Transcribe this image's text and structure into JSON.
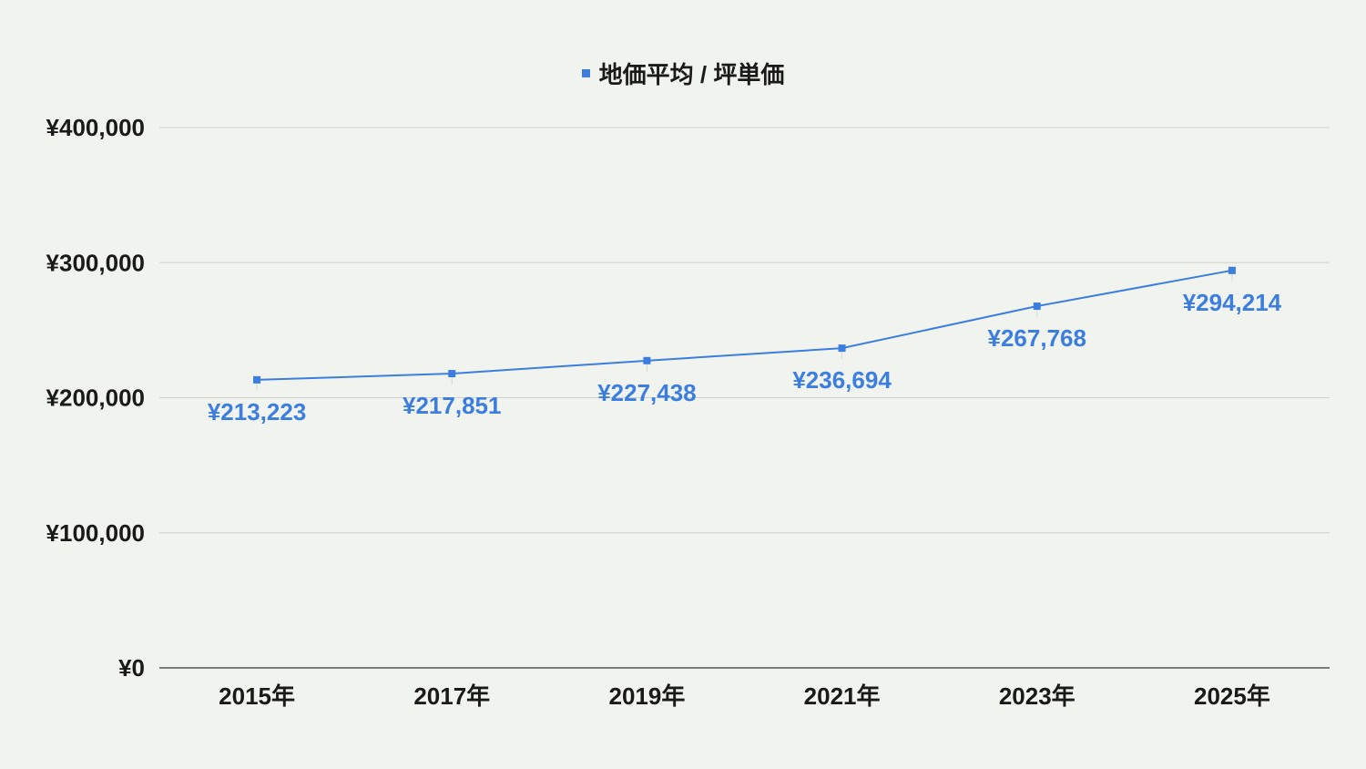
{
  "chart_data": {
    "type": "line",
    "title": "",
    "categories": [
      "2015年",
      "2017年",
      "2019年",
      "2021年",
      "2023年",
      "2025年"
    ],
    "series": [
      {
        "name": "地価平均 / 坪単価",
        "color": "#3c7ee0",
        "values": [
          213223,
          217851,
          227438,
          236694,
          267768,
          294214
        ],
        "data_labels": [
          "¥213,223",
          "¥217,851",
          "¥227,438",
          "¥236,694",
          "¥267,768",
          "¥294,214"
        ]
      }
    ],
    "xlabel": "",
    "ylabel": "",
    "ylim": [
      0,
      400000
    ],
    "yticks": [
      0,
      100000,
      200000,
      300000,
      400000
    ],
    "ytick_labels": [
      "¥0",
      "¥100,000",
      "¥200,000",
      "¥300,000",
      "¥400,000"
    ],
    "grid": true,
    "legend_position": "top"
  },
  "legend": {
    "label": "地価平均 / 坪単価",
    "color": "#3c7ee0"
  },
  "colors": {
    "background": "#f1f3ee",
    "grid": "#cfd1cb",
    "axis": "#333333",
    "text": "#1a1a1a",
    "series": "#3c7ee0"
  }
}
